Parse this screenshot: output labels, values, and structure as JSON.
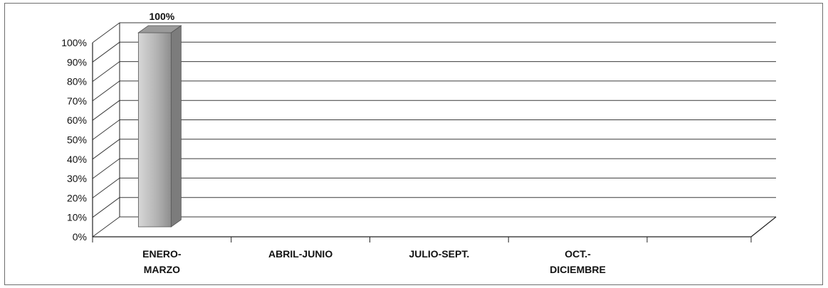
{
  "chart_data": {
    "type": "bar",
    "title": "",
    "xlabel": "",
    "ylabel": "",
    "categories": [
      [
        "ENERO-",
        "MARZO"
      ],
      [
        "ABRIL-JUNIO"
      ],
      [
        "JULIO-SEPT."
      ],
      [
        "OCT.-",
        "DICIEMBRE"
      ]
    ],
    "values": [
      100,
      null,
      null,
      null
    ],
    "data_labels": [
      "100%",
      "",
      "",
      ""
    ],
    "ylim": [
      0,
      100
    ],
    "yticks": [
      "0%",
      "10%",
      "20%",
      "30%",
      "40%",
      "50%",
      "60%",
      "70%",
      "80%",
      "90%",
      "100%"
    ],
    "grid": true,
    "legend": "none",
    "style": "3d",
    "colors": {
      "bar": "#b8b8b8",
      "bar_side": "#7c7c7c",
      "grid": "#3a3a3a",
      "axis": "#222222"
    }
  }
}
